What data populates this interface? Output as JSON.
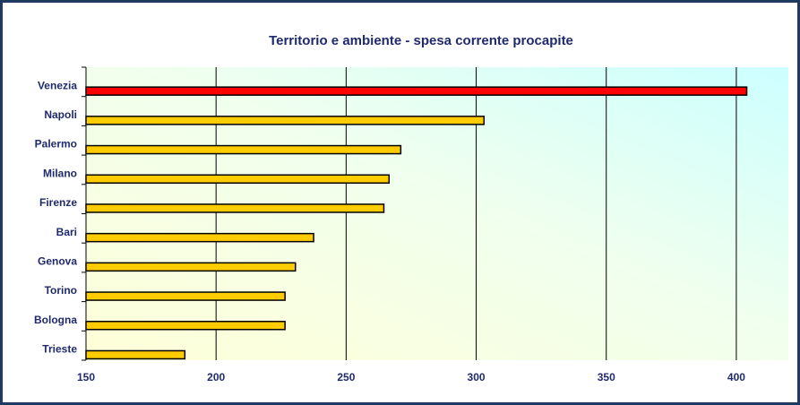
{
  "chart_data": {
    "type": "hbar",
    "title": "Territorio e ambiente - spesa corrente procapite",
    "categories": [
      "Venezia",
      "Napoli",
      "Palermo",
      "Milano",
      "Firenze",
      "Bari",
      "Genova",
      "Torino",
      "Bologna",
      "Trieste"
    ],
    "values": [
      404,
      303,
      271,
      266.5,
      264.5,
      237.5,
      230.5,
      226.5,
      226.5,
      188
    ],
    "colors": [
      "#ff0000",
      "#ffcc00",
      "#ffcc00",
      "#ffcc00",
      "#ffcc00",
      "#ffcc00",
      "#ffcc00",
      "#ffcc00",
      "#ffcc00",
      "#ffcc00"
    ],
    "xlim": [
      150,
      420
    ],
    "xticks": [
      150,
      200,
      250,
      300,
      350,
      400
    ],
    "grid": true
  }
}
